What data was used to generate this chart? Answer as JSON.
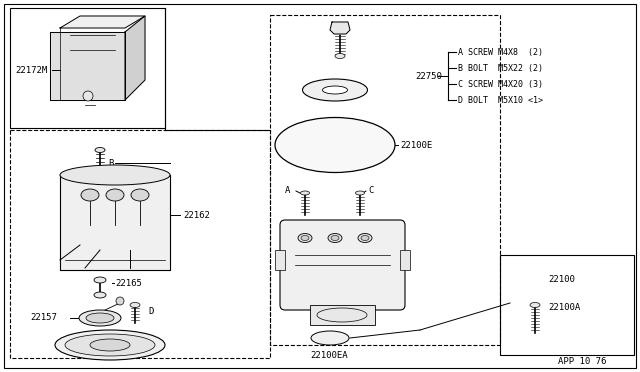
{
  "bg_color": "#ffffff",
  "line_color": "#000000",
  "text_color": "#000000",
  "bolt_labels": {
    "A": "SCREW M4X8  (2)",
    "B": "BOLT  M5X22 (2)",
    "C": "SCREW M4X20 (3)",
    "D": "BOLT  M5X10 <1>"
  },
  "app_code": "APP 10 76",
  "part_ids": [
    "22172M",
    "22162",
    "22165",
    "22157",
    "22750",
    "22100E",
    "22100EA",
    "22100",
    "22100A"
  ]
}
